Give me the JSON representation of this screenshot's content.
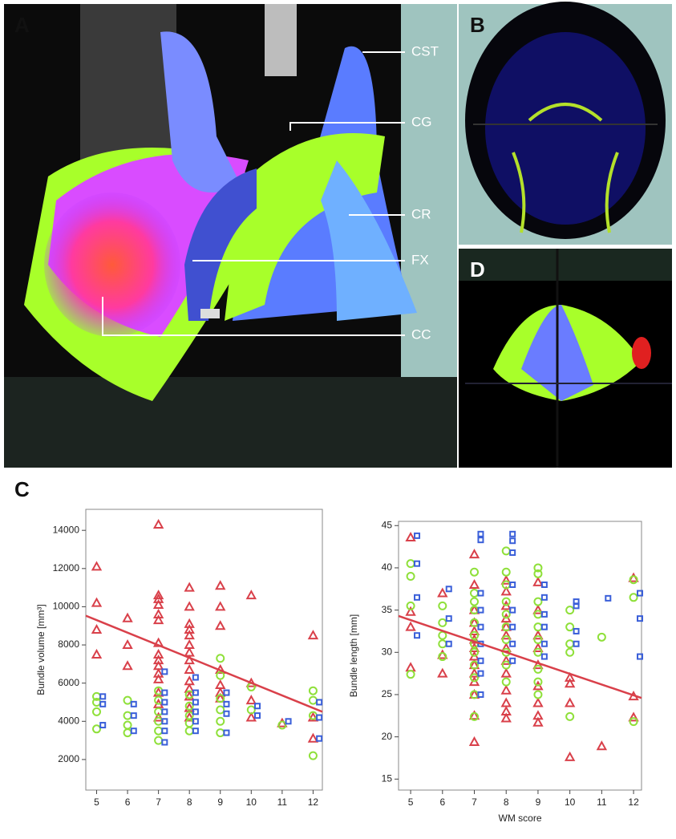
{
  "panels": {
    "a": "A",
    "b": "B",
    "c": "C",
    "d": "D"
  },
  "annotations": [
    "CST",
    "CG",
    "CR",
    "FX",
    "CC"
  ],
  "chart_data": [
    {
      "type": "scatter",
      "y_label": "Bundle volume [mm³]",
      "xlim": [
        4.65,
        12.3
      ],
      "ylim": [
        400,
        15100
      ],
      "xticks": [
        5,
        6,
        7,
        8,
        9,
        10,
        11,
        12
      ],
      "yticks": [
        2000,
        4000,
        6000,
        8000,
        10000,
        12000,
        14000
      ],
      "series": [
        {
          "color": "#d9404a",
          "marker": "triangle",
          "x": [
            5,
            5,
            5,
            5,
            6,
            6,
            6,
            7,
            7,
            7,
            7,
            7,
            7,
            7,
            7,
            7,
            7,
            7,
            7,
            7,
            7,
            7,
            8,
            8,
            8,
            8,
            8,
            8,
            8,
            8,
            8,
            8,
            8,
            8,
            8,
            8,
            9,
            9,
            9,
            9,
            9,
            9,
            9,
            10,
            10,
            10,
            10,
            11,
            12,
            12,
            12
          ],
          "values": [
            12100,
            10200,
            8800,
            7500,
            9400,
            8000,
            6900,
            14300,
            10600,
            10400,
            10100,
            9600,
            9300,
            8100,
            7500,
            7200,
            6900,
            6500,
            6200,
            5500,
            4900,
            4200,
            11000,
            10000,
            9100,
            8800,
            8500,
            8000,
            7600,
            7200,
            6700,
            6100,
            5700,
            5300,
            4700,
            4200,
            11100,
            10000,
            9000,
            6700,
            5900,
            5500,
            5200,
            10600,
            6000,
            5100,
            4200,
            3900,
            8500,
            4200,
            3100
          ]
        },
        {
          "color": "#8fe03a",
          "marker": "circle",
          "x": [
            5,
            5,
            5,
            5,
            6,
            6,
            6,
            6,
            7,
            7,
            7,
            7,
            7,
            7,
            8,
            8,
            8,
            8,
            8,
            9,
            9,
            9,
            9,
            9,
            9,
            10,
            10,
            11,
            12,
            12,
            12,
            12
          ],
          "values": [
            5300,
            5000,
            4500,
            3600,
            5100,
            4300,
            3800,
            3400,
            5600,
            5100,
            4500,
            4000,
            3500,
            3000,
            5400,
            4800,
            4300,
            3900,
            3500,
            7300,
            6400,
            5200,
            4600,
            4000,
            3400,
            5800,
            4600,
            3800,
            5600,
            5100,
            4300,
            2200
          ]
        },
        {
          "color": "#3a5fd9",
          "marker": "square",
          "x": [
            5.2,
            5.2,
            5.2,
            6.2,
            6.2,
            6.2,
            7.2,
            7.2,
            7.2,
            7.2,
            7.2,
            7.2,
            7.2,
            8.2,
            8.2,
            8.2,
            8.2,
            8.2,
            8.2,
            9.2,
            9.2,
            9.2,
            9.2,
            10.2,
            10.2,
            11.2,
            12.2,
            12.2,
            12.2
          ],
          "values": [
            5300,
            4900,
            3800,
            4900,
            4300,
            3500,
            6600,
            5500,
            5000,
            4500,
            4000,
            3500,
            2900,
            6300,
            5500,
            5000,
            4500,
            4000,
            3500,
            5500,
            4900,
            4400,
            3400,
            4800,
            4300,
            4000,
            5000,
            4200,
            3100
          ]
        }
      ],
      "trend": {
        "color": "#d9404a",
        "x": [
          4.65,
          12.3
        ],
        "values": [
          9530,
          4500
        ]
      }
    },
    {
      "type": "scatter",
      "y_label": "Bundle length [mm]",
      "x_label": "WM score",
      "xlim": [
        4.62,
        12.25
      ],
      "ylim": [
        13.7,
        45.5
      ],
      "xticks": [
        5,
        6,
        7,
        8,
        9,
        10,
        11,
        12
      ],
      "yticks": [
        15,
        20,
        25,
        30,
        35,
        40,
        45
      ],
      "series": [
        {
          "color": "#d9404a",
          "marker": "triangle",
          "x": [
            5,
            5,
            5,
            5,
            6,
            6,
            6,
            7,
            7,
            7,
            7,
            7,
            7,
            7,
            7,
            7,
            7,
            7,
            7,
            7,
            7,
            8,
            8,
            8,
            8,
            8,
            8,
            8,
            8,
            8,
            8,
            8,
            8,
            8,
            9,
            9,
            9,
            9,
            9,
            9,
            9,
            9,
            9,
            10,
            10,
            10,
            10,
            11,
            12,
            12,
            12
          ],
          "values": [
            43.6,
            34.8,
            33,
            28.2,
            37,
            29.7,
            27.5,
            41.6,
            38,
            35,
            33.5,
            32.5,
            31.5,
            30.5,
            29.5,
            28.5,
            27.5,
            26.5,
            25,
            22.5,
            19.4,
            38.5,
            37.2,
            35.5,
            34,
            33,
            32,
            30.5,
            29,
            27.5,
            25.5,
            24,
            23,
            22.2,
            38.3,
            35,
            32,
            30.5,
            28.5,
            26,
            24,
            22.5,
            21.7,
            27,
            26.3,
            24,
            17.6,
            18.9,
            38.8,
            24.8,
            22.3
          ]
        },
        {
          "color": "#8fe03a",
          "marker": "circle",
          "x": [
            5,
            5,
            5,
            5,
            6,
            6,
            6,
            6,
            6,
            7,
            7,
            7,
            7,
            7,
            7,
            7,
            7,
            7,
            7,
            7,
            7,
            8,
            8,
            8,
            8,
            8,
            8,
            8,
            8,
            8,
            8,
            9,
            9,
            9,
            9,
            9,
            9,
            9,
            9,
            9,
            9,
            10,
            10,
            10,
            10,
            10,
            11,
            12,
            12,
            12
          ],
          "values": [
            40.5,
            39,
            35.5,
            27.4,
            35.5,
            33.5,
            32,
            31,
            29.5,
            39.5,
            37,
            36,
            35,
            33.5,
            32,
            31,
            30,
            28.5,
            27,
            25,
            22.4,
            42,
            39.5,
            38,
            36,
            34.5,
            33,
            31.5,
            30,
            28.5,
            26.5,
            40,
            39.3,
            36,
            34.5,
            33,
            31.5,
            30,
            28,
            26.5,
            25,
            35,
            33,
            31,
            30,
            22.4,
            31.8,
            38.6,
            36.5,
            21.8
          ]
        },
        {
          "color": "#3a5fd9",
          "marker": "square",
          "x": [
            5.2,
            5.2,
            5.2,
            5.2,
            6.2,
            6.2,
            6.2,
            7.2,
            7.2,
            7.2,
            7.2,
            7.2,
            7.2,
            7.2,
            7.2,
            7.2,
            8.2,
            8.2,
            8.2,
            8.2,
            8.2,
            8.2,
            8.2,
            8.2,
            9.2,
            9.2,
            9.2,
            9.2,
            9.2,
            9.2,
            10.2,
            10.2,
            10.2,
            10.2,
            11.2,
            12.2,
            12.2,
            12.2
          ],
          "values": [
            43.8,
            40.5,
            36.5,
            32,
            37.5,
            34,
            31,
            44,
            43.3,
            37,
            35,
            33,
            31,
            29,
            27.5,
            25,
            44,
            43.2,
            41.8,
            38,
            35,
            33,
            31,
            29,
            38,
            36.5,
            34.5,
            33,
            31,
            29.5,
            36,
            35.5,
            32.5,
            31,
            36.4,
            37,
            34,
            29.5
          ]
        }
      ],
      "trend": {
        "color": "#d9404a",
        "x": [
          4.62,
          12.25
        ],
        "values": [
          34.3,
          24.6
        ]
      }
    }
  ]
}
